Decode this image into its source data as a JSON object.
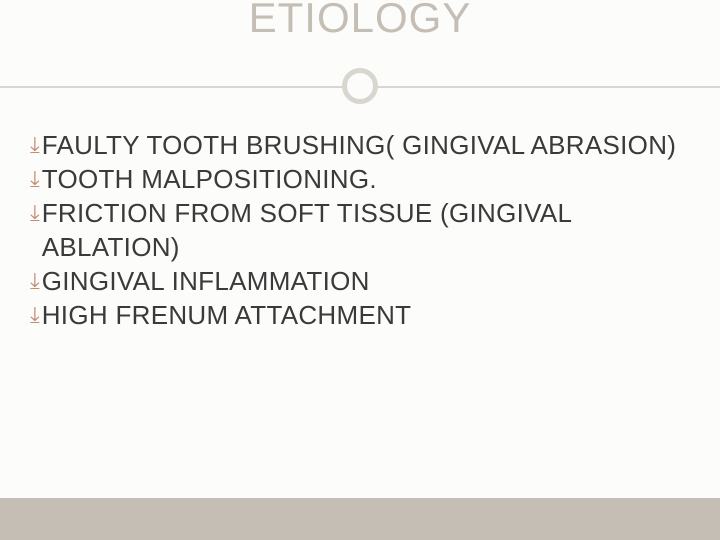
{
  "slide": {
    "background_color": "#fcfcfb",
    "title": {
      "text": "ETIOLOGY",
      "color": "#c4beb4",
      "fontsize": 42
    },
    "divider": {
      "line_color": "#d9d6d0",
      "circle_border_color": "#d9d6d0",
      "circle_size": 36,
      "circle_border_width": 5
    },
    "bullets": {
      "glyph": "⤓",
      "glyph_color": "#c88a6e",
      "text_color": "#3a3a3a",
      "fontsize": 26,
      "items": [
        "FAULTY TOOTH BRUSHING( GINGIVAL ABRASION)",
        "TOOTH MALPOSITIONING.",
        "FRICTION FROM SOFT TISSUE (GINGIVAL ABLATION)",
        "GINGIVAL INFLAMMATION",
        "HIGH FRENUM ATTACHMENT"
      ]
    },
    "bottom_bar_color": "#c4beb4"
  }
}
